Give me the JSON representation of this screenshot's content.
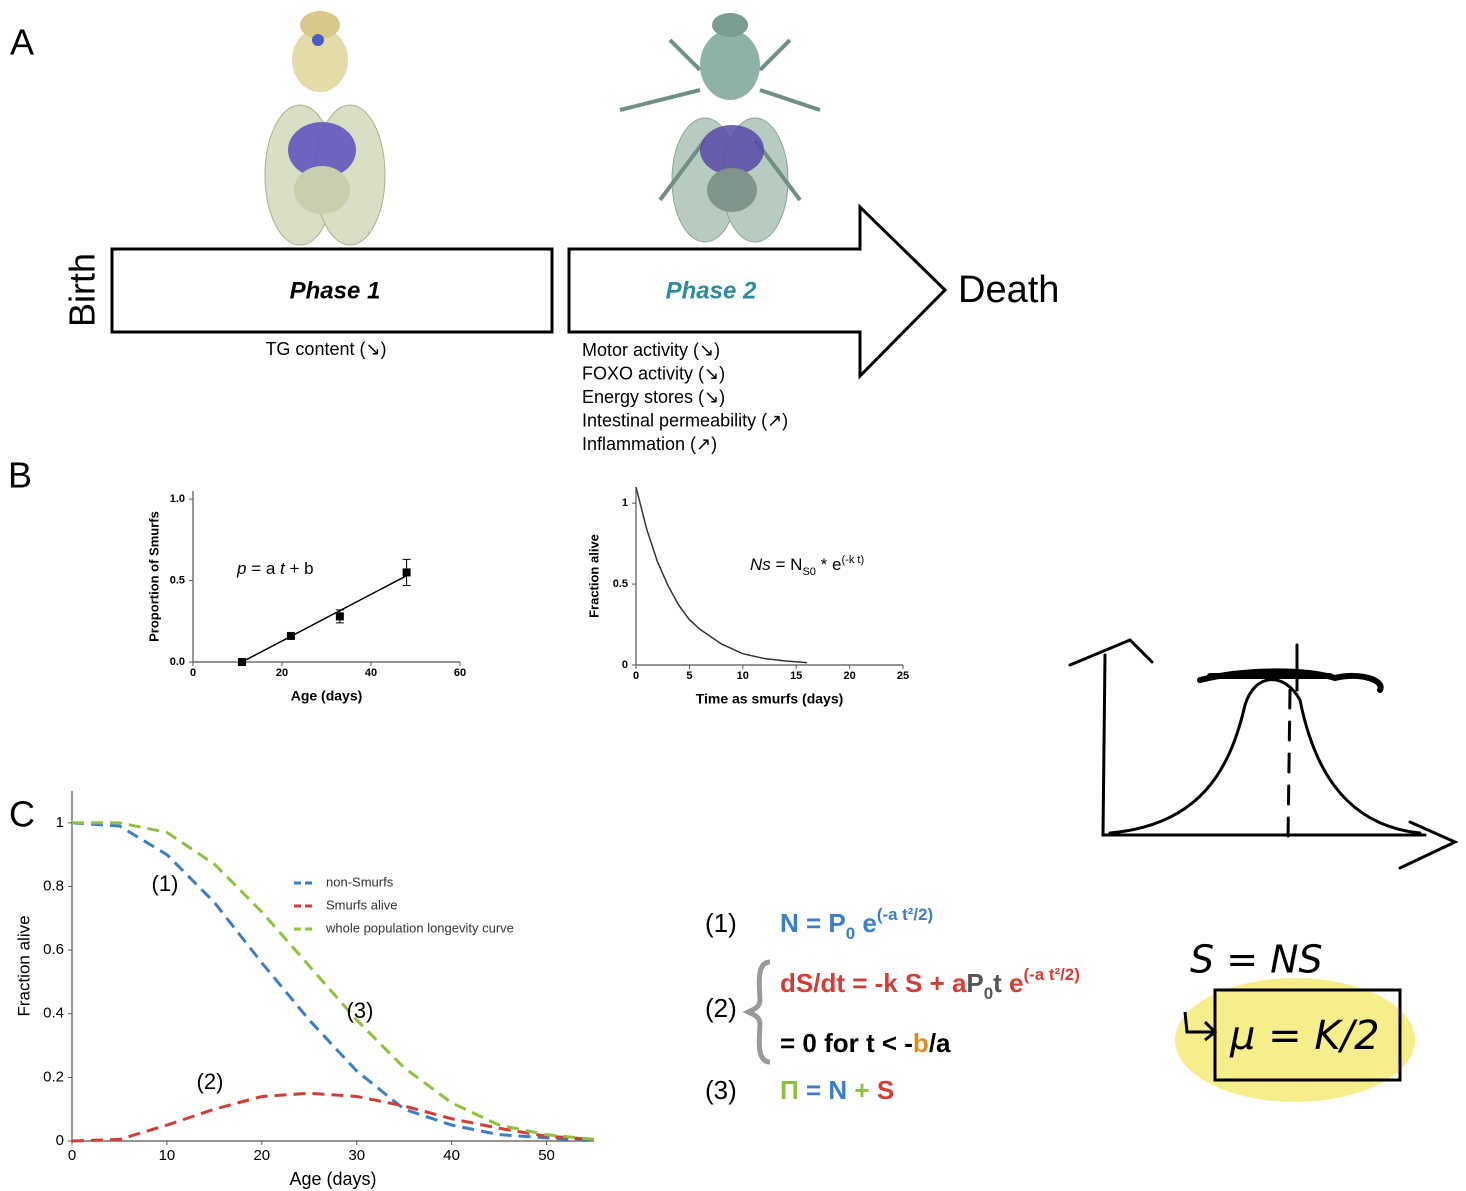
{
  "panel_labels": [
    "A",
    "B",
    "C"
  ],
  "timeline": {
    "start": "Birth",
    "end": "Death",
    "phases": [
      {
        "name": "Phase 1",
        "color": "#000000",
        "traits": [
          "TG content (↘)"
        ]
      },
      {
        "name": "Phase 2",
        "color": "#2b8b9e",
        "traits": [
          "Motor activity (↘)",
          "FOXO activity (↘)",
          "Energy stores (↘)",
          "Intestinal permeability (↗)",
          "Inflammation (↗)"
        ]
      }
    ]
  },
  "chart_data": [
    {
      "type": "scatter",
      "xlabel": "Age (days)",
      "ylabel": "Proportion of Smurfs",
      "x": [
        11,
        22,
        33,
        48
      ],
      "values": [
        0,
        0.16,
        0.28,
        0.55
      ],
      "errors": [
        0,
        0.01,
        0.04,
        0.08
      ],
      "fit": {
        "x": [
          11,
          48
        ],
        "values": [
          0,
          0.53
        ]
      },
      "xlim": [
        0,
        60
      ],
      "xticks": [
        0,
        20,
        40,
        60
      ],
      "ylim": [
        0,
        1.05
      ],
      "yticks": [
        {
          "value": 0,
          "label": "0.0"
        },
        {
          "value": 0.5,
          "label": "0.5"
        },
        {
          "value": 1,
          "label": "1.0"
        }
      ],
      "annotation": [
        {
          "text": "p",
          "style": "italic"
        },
        {
          "text": " = a "
        },
        {
          "text": "t",
          "style": "italic"
        },
        {
          "text": " + b"
        }
      ]
    },
    {
      "type": "line",
      "xlabel": "Time as smurfs (days)",
      "ylabel": "Fraction alive",
      "x": [
        0,
        1,
        2,
        3,
        4,
        5,
        6,
        8,
        10,
        12,
        14,
        16
      ],
      "values": [
        1.1,
        0.84,
        0.64,
        0.49,
        0.37,
        0.28,
        0.22,
        0.13,
        0.07,
        0.04,
        0.025,
        0.015
      ],
      "color": "#333333",
      "xlim": [
        0,
        25
      ],
      "xticks": [
        0,
        5,
        10,
        15,
        20,
        25
      ],
      "ylim": [
        0,
        1.1
      ],
      "yticks": [
        0,
        0.5,
        1
      ],
      "annotation": [
        {
          "text": "Ns",
          "style": "italic"
        },
        {
          "text": " = N"
        },
        {
          "text": "S0",
          "pos": "sub"
        },
        {
          "text": " * e"
        },
        {
          "text": "(-k t)",
          "pos": "sup"
        }
      ]
    },
    {
      "type": "line",
      "xlabel": "Age (days)",
      "ylabel": "Fraction alive",
      "dashed": true,
      "legend": "upper right",
      "x": [
        0,
        5,
        10,
        15,
        20,
        25,
        30,
        35,
        40,
        45,
        50,
        55
      ],
      "series": [
        {
          "name": "non-Smurfs",
          "color": "#3b7dc8",
          "values": [
            1,
            0.99,
            0.9,
            0.75,
            0.56,
            0.38,
            0.22,
            0.1,
            0.05,
            0.02,
            0.01,
            0
          ]
        },
        {
          "name": "Smurfs alive",
          "color": "#d43d35",
          "values": [
            0,
            0.005,
            0.05,
            0.1,
            0.14,
            0.15,
            0.14,
            0.11,
            0.07,
            0.04,
            0.015,
            0.005
          ]
        },
        {
          "name": "whole population longevity curve",
          "color": "#8fc13e",
          "values": [
            1,
            1,
            0.97,
            0.87,
            0.72,
            0.55,
            0.38,
            0.23,
            0.12,
            0.05,
            0.02,
            0.005
          ]
        }
      ],
      "xlim": [
        0,
        55
      ],
      "xticks": [
        0,
        10,
        20,
        30,
        40,
        50
      ],
      "ylim": [
        0,
        1.1
      ],
      "yticks": [
        0,
        0.2,
        0.4,
        0.6,
        0.8,
        1
      ],
      "annotations": [
        "(1)",
        "(2)",
        "(3)"
      ]
    }
  ],
  "equations": [
    {
      "label": "(1)",
      "lines": [
        [
          {
            "text": "N = P",
            "color": "#3b7dc8"
          },
          {
            "text": "0",
            "color": "#3b7dc8",
            "pos": "sub"
          },
          {
            "text": " e",
            "color": "#3b7dc8"
          },
          {
            "text": "(-a t²/2)",
            "color": "#3b7dc8",
            "pos": "sup"
          }
        ]
      ]
    },
    {
      "label": "(2)",
      "lines": [
        [
          {
            "text": "dS/dt",
            "color": "#d43d35"
          },
          {
            "text": " = -k S + a",
            "color": "#d43d35"
          },
          {
            "text": "P",
            "color": "#555555"
          },
          {
            "text": "0",
            "color": "#555555",
            "pos": "sub"
          },
          {
            "text": "t",
            "color": "#555555"
          },
          {
            "text": " e",
            "color": "#d43d35"
          },
          {
            "text": "(-a t²/2)",
            "color": "#d43d35",
            "pos": "sup"
          }
        ],
        [
          {
            "text": "= 0 for t < -",
            "color": "#000000"
          },
          {
            "text": "b",
            "color": "#e08a1e"
          },
          {
            "text": "/a",
            "color": "#000000"
          }
        ]
      ]
    },
    {
      "label": "(3)",
      "lines": [
        [
          {
            "text": "Π",
            "color": "#8fc13e"
          },
          {
            "text": " = ",
            "color": "#3b7dc8"
          },
          {
            "text": "N",
            "color": "#3b7dc8"
          },
          {
            "text": " + ",
            "color": "#8fc13e"
          },
          {
            "text": "S",
            "color": "#d43d35"
          }
        ]
      ]
    }
  ],
  "notes": [
    "S = NS",
    "μ = K/2"
  ]
}
